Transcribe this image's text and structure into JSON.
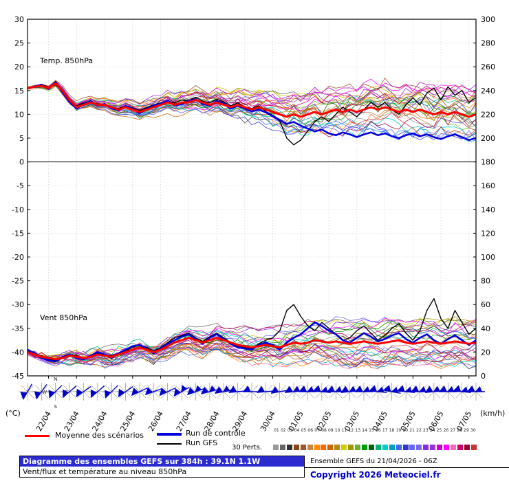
{
  "legend": {
    "mean_label": "Moyenne des scénarios",
    "control_label": "Run de contrôle",
    "gfs_label": "Run GFS",
    "perts_label": "30 Perts.",
    "member_numbers": [
      "01",
      "02",
      "03",
      "04",
      "05",
      "06",
      "07",
      "08",
      "09",
      "10",
      "11",
      "12",
      "13",
      "14",
      "15",
      "16",
      "17",
      "18",
      "19",
      "20",
      "21",
      "22",
      "23",
      "24",
      "25",
      "26",
      "27",
      "28",
      "29",
      "30"
    ]
  },
  "footer": {
    "title": "Diagramme des ensembles GEFS sur 384h : 39.1N 1.1W",
    "subtitle": "Vent/flux et température au niveau 850hPa",
    "run_info": "Ensemble GEFS du 21/04/2026 - 06Z",
    "copyright": "Copyright 2026 Meteociel.fr",
    "title_bg": "#2b2bd0",
    "copyright_color": "#0000cc"
  },
  "chart_data": {
    "type": "line",
    "total_hours": 384,
    "step_hours": 6,
    "first_label_hour": 18,
    "x_dates": [
      "22/04",
      "23/04",
      "24/04",
      "25/04",
      "26/04",
      "27/04",
      "28/04",
      "29/04",
      "30/04",
      "01/05",
      "02/05",
      "03/05",
      "04/05",
      "05/05",
      "06/05",
      "07/05"
    ],
    "left_axis": {
      "label": "(°C)",
      "min": -45,
      "max": 30,
      "tick_step": 5
    },
    "right_axis": {
      "label": "(km/h)",
      "min": 0,
      "max": 300,
      "tick_step": 20
    },
    "temp_label": "Temp. 850hPa",
    "wind_label": "Vent 850hPa",
    "series_colors": {
      "mean": "#ff0000",
      "control": "#0000dd",
      "gfs": "#000000"
    },
    "member_colors": [
      "#999999",
      "#666666",
      "#333333",
      "#8b4513",
      "#a0522d",
      "#cd853f",
      "#ff8c00",
      "#ff6600",
      "#cc6600",
      "#b8860b",
      "#cccc00",
      "#999900",
      "#66b032",
      "#009900",
      "#006400",
      "#00b27a",
      "#00cccc",
      "#0099cc",
      "#4169e1",
      "#3333cc",
      "#6666ff",
      "#7b68ee",
      "#8a2be2",
      "#9932cc",
      "#cc00cc",
      "#ff00ff",
      "#ff69b4",
      "#cc0066",
      "#990033",
      "#cc3333"
    ],
    "temp": {
      "mean": [
        15.5,
        15.8,
        16.0,
        15.5,
        16.5,
        15.0,
        13.0,
        11.5,
        12.0,
        12.5,
        12.0,
        12.0,
        11.5,
        11.0,
        11.5,
        11.0,
        10.5,
        11.0,
        11.5,
        12.0,
        12.5,
        12.0,
        12.5,
        12.5,
        13.0,
        12.5,
        12.0,
        12.5,
        12.0,
        11.5,
        12.0,
        11.5,
        11.0,
        11.5,
        11.0,
        10.5,
        10.0,
        9.5,
        10.0,
        9.5,
        10.0,
        10.5,
        10.0,
        10.5,
        11.0,
        10.5,
        11.0,
        10.5,
        11.0,
        11.5,
        11.0,
        11.5,
        11.0,
        10.5,
        11.0,
        10.5,
        11.0,
        10.5,
        10.0,
        10.5,
        10.0,
        10.5,
        10.0,
        9.5,
        10.0
      ],
      "control": [
        15.5,
        15.9,
        16.2,
        15.3,
        16.8,
        14.6,
        12.6,
        11.2,
        12.2,
        12.8,
        11.8,
        12.2,
        11.3,
        10.8,
        11.8,
        11.2,
        10.2,
        11.2,
        11.8,
        12.3,
        12.8,
        11.8,
        12.2,
        12.8,
        13.2,
        12.2,
        11.8,
        12.8,
        12.3,
        11.2,
        11.8,
        11.2,
        10.6,
        11.0,
        10.4,
        9.6,
        8.8,
        8.0,
        8.4,
        7.6,
        7.0,
        6.4,
        6.8,
        6.0,
        5.6,
        6.2,
        5.8,
        5.2,
        5.8,
        6.2,
        5.6,
        6.0,
        5.4,
        5.0,
        5.6,
        6.0,
        5.4,
        5.8,
        5.2,
        4.8,
        5.4,
        5.8,
        5.2,
        4.6,
        5.0
      ],
      "gfs": [
        15.5,
        15.7,
        16.3,
        15.6,
        16.2,
        14.8,
        12.8,
        11.8,
        12.4,
        12.6,
        12.2,
        11.8,
        11.6,
        11.2,
        11.8,
        11.4,
        10.8,
        11.4,
        12.0,
        12.4,
        12.8,
        12.4,
        13.0,
        12.8,
        13.6,
        12.8,
        12.4,
        13.2,
        12.6,
        11.8,
        12.4,
        11.6,
        11.2,
        11.8,
        10.6,
        9.8,
        8.6,
        5.0,
        3.6,
        4.6,
        6.5,
        8.5,
        9.5,
        8.5,
        10.0,
        11.5,
        10.5,
        9.5,
        11.0,
        12.5,
        11.5,
        12.5,
        11.0,
        10.0,
        12.0,
        13.5,
        12.0,
        14.5,
        15.5,
        13.0,
        15.8,
        14.0,
        15.0,
        12.5,
        13.5
      ],
      "spread": [
        0.5,
        0.5,
        0.6,
        0.6,
        0.7,
        0.7,
        0.8,
        0.8,
        0.9,
        0.9,
        1.0,
        1.0,
        1.1,
        1.1,
        1.2,
        1.2,
        1.3,
        1.3,
        1.4,
        1.4,
        1.5,
        1.5,
        1.6,
        1.6,
        1.7,
        1.8,
        1.8,
        1.9,
        2.0,
        2.0,
        2.1,
        2.2,
        2.2,
        2.3,
        2.4,
        2.5,
        2.6,
        2.7,
        2.8,
        2.8,
        2.9,
        3.0,
        3.0,
        3.1,
        3.1,
        3.2,
        3.2,
        3.2,
        3.3,
        3.3,
        3.3,
        3.4,
        3.4,
        3.4,
        3.4,
        3.5,
        3.5,
        3.5,
        3.5,
        3.5,
        3.5,
        3.5,
        3.5,
        3.5,
        3.5
      ]
    },
    "wind": {
      "mean": [
        20,
        18,
        16,
        15,
        14,
        15,
        17,
        16,
        15,
        16,
        18,
        17,
        16,
        18,
        20,
        22,
        24,
        22,
        20,
        22,
        25,
        28,
        30,
        32,
        30,
        28,
        30,
        32,
        30,
        28,
        26,
        25,
        24,
        25,
        26,
        25,
        24,
        26,
        28,
        27,
        28,
        30,
        29,
        28,
        29,
        28,
        27,
        28,
        29,
        28,
        27,
        28,
        29,
        30,
        28,
        27,
        28,
        29,
        28,
        27,
        28,
        29,
        28,
        27,
        28
      ],
      "control": [
        22,
        19,
        15,
        13,
        12,
        16,
        18,
        15,
        14,
        17,
        20,
        18,
        15,
        19,
        22,
        25,
        26,
        23,
        19,
        23,
        27,
        30,
        33,
        35,
        31,
        27,
        32,
        35,
        31,
        27,
        24,
        23,
        22,
        26,
        28,
        26,
        22,
        28,
        32,
        35,
        40,
        45,
        42,
        38,
        35,
        30,
        28,
        32,
        36,
        33,
        29,
        31,
        34,
        36,
        31,
        28,
        32,
        35,
        30,
        27,
        31,
        34,
        30,
        26,
        30
      ],
      "gfs": [
        21,
        18,
        17,
        14,
        13,
        16,
        18,
        17,
        14,
        16,
        19,
        18,
        17,
        19,
        21,
        24,
        26,
        24,
        21,
        24,
        28,
        32,
        34,
        36,
        32,
        29,
        33,
        36,
        32,
        28,
        25,
        24,
        23,
        27,
        30,
        32,
        38,
        55,
        60,
        50,
        42,
        38,
        45,
        40,
        35,
        30,
        32,
        38,
        42,
        36,
        30,
        34,
        40,
        44,
        36,
        30,
        38,
        55,
        65,
        48,
        40,
        55,
        45,
        35,
        40
      ],
      "spread": [
        4,
        4,
        4,
        5,
        5,
        5,
        5,
        6,
        6,
        6,
        6,
        7,
        7,
        7,
        7,
        8,
        8,
        8,
        8,
        9,
        9,
        9,
        9,
        10,
        10,
        10,
        10,
        11,
        11,
        11,
        11,
        12,
        12,
        12,
        12,
        13,
        13,
        13,
        13,
        14,
        14,
        14,
        14,
        14,
        15,
        15,
        15,
        15,
        15,
        15,
        15,
        15,
        15,
        15,
        15,
        15,
        15,
        15,
        15,
        15,
        15,
        15,
        15,
        15,
        15
      ],
      "directions_deg": [
        210,
        215,
        225,
        230,
        235,
        230,
        225,
        235,
        245,
        250,
        245,
        240,
        250,
        255,
        260,
        265,
        270,
        265,
        260,
        265,
        270,
        275,
        270,
        265,
        270,
        275,
        280,
        275,
        270,
        265,
        270,
        275,
        270
      ]
    }
  }
}
